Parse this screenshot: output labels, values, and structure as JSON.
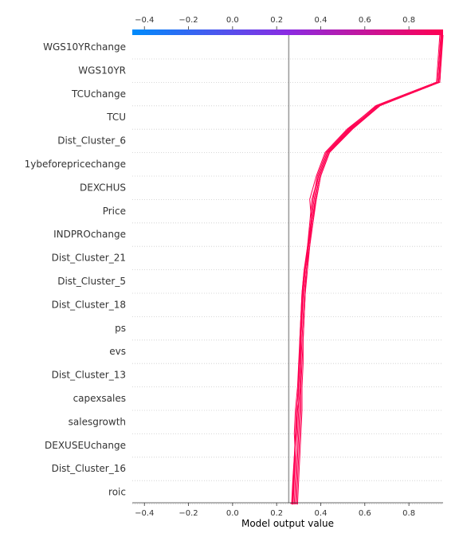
{
  "chart_data": {
    "type": "line",
    "subtype": "shap-decision-plot",
    "xlabel": "Model output value",
    "xlim": [
      -0.455,
      0.955
    ],
    "x_ticks": [
      -0.4,
      -0.2,
      0.0,
      0.2,
      0.4,
      0.6,
      0.8
    ],
    "x_tick_labels": [
      "−0.4",
      "−0.2",
      "0.0",
      "0.2",
      "0.4",
      "0.6",
      "0.8"
    ],
    "base_value": 0.255,
    "grid": "horizontal dotted",
    "features": [
      "WGS10YRchange",
      "WGS10YR",
      "TCUchange",
      "TCU",
      "Dist_Cluster_6",
      "1ybeforepricechange",
      "DEXCHUS",
      "Price",
      "INDPROchange",
      "Dist_Cluster_21",
      "Dist_Cluster_5",
      "Dist_Cluster_18",
      "ps",
      "evs",
      "Dist_Cluster_13",
      "capexsales",
      "salesgrowth",
      "DEXUSEUchange",
      "Dist_Cluster_16",
      "roic"
    ],
    "colors": {
      "colorbar_low": "#008bfb",
      "colorbar_mid": "#8a2be2",
      "colorbar_high": "#ff0052",
      "line": "#ff0052",
      "base_line": "#999999",
      "grid": "#cccccc"
    },
    "series": [
      {
        "values": [
          0.265,
          0.27,
          0.275,
          0.28,
          0.29,
          0.295,
          0.31,
          0.31,
          0.31,
          0.315,
          0.32,
          0.33,
          0.345,
          0.36,
          0.38,
          0.4,
          0.44,
          0.54,
          0.67,
          0.94,
          0.95
        ]
      },
      {
        "values": [
          0.27,
          0.275,
          0.28,
          0.285,
          0.28,
          0.285,
          0.295,
          0.3,
          0.305,
          0.31,
          0.315,
          0.325,
          0.34,
          0.355,
          0.37,
          0.39,
          0.43,
          0.53,
          0.66,
          0.93,
          0.945
        ]
      },
      {
        "values": [
          0.275,
          0.28,
          0.285,
          0.29,
          0.295,
          0.3,
          0.3,
          0.305,
          0.305,
          0.31,
          0.315,
          0.325,
          0.345,
          0.355,
          0.365,
          0.385,
          0.425,
          0.525,
          0.65,
          0.925,
          0.94
        ]
      },
      {
        "values": [
          0.28,
          0.285,
          0.29,
          0.295,
          0.3,
          0.305,
          0.305,
          0.31,
          0.315,
          0.32,
          0.325,
          0.335,
          0.35,
          0.36,
          0.375,
          0.395,
          0.435,
          0.535,
          0.66,
          0.935,
          0.948
        ]
      },
      {
        "values": [
          0.268,
          0.272,
          0.278,
          0.283,
          0.287,
          0.292,
          0.298,
          0.302,
          0.307,
          0.312,
          0.318,
          0.328,
          0.342,
          0.358,
          0.35,
          0.38,
          0.42,
          0.52,
          0.655,
          0.93,
          0.945
        ]
      },
      {
        "values": [
          0.285,
          0.29,
          0.295,
          0.3,
          0.305,
          0.31,
          0.31,
          0.315,
          0.32,
          0.325,
          0.33,
          0.34,
          0.35,
          0.365,
          0.38,
          0.4,
          0.44,
          0.545,
          0.67,
          0.94,
          0.952
        ]
      },
      {
        "values": [
          0.262,
          0.268,
          0.273,
          0.28,
          0.285,
          0.29,
          0.3,
          0.305,
          0.31,
          0.315,
          0.32,
          0.33,
          0.34,
          0.35,
          0.36,
          0.39,
          0.43,
          0.53,
          0.66,
          0.935,
          0.95
        ]
      },
      {
        "values": [
          0.29,
          0.295,
          0.3,
          0.305,
          0.31,
          0.315,
          0.315,
          0.32,
          0.32,
          0.325,
          0.33,
          0.335,
          0.345,
          0.36,
          0.375,
          0.395,
          0.435,
          0.54,
          0.665,
          0.94,
          0.955
        ]
      }
    ]
  }
}
